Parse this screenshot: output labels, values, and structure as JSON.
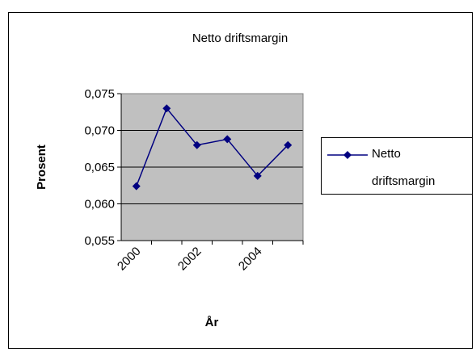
{
  "chart_data": {
    "type": "line",
    "title": "Netto driftsmargin",
    "x_label": "År",
    "y_label": "Prosent",
    "categories": [
      "2000",
      null,
      "2002",
      null,
      "2004",
      null
    ],
    "series": [
      {
        "name": "Netto driftsmargin",
        "color": "#000080",
        "values": [
          0.0624,
          0.073,
          0.068,
          0.0688,
          0.0638,
          0.068
        ]
      }
    ],
    "ylim": [
      0.055,
      0.075
    ],
    "yticks": [
      {
        "value": 0.055,
        "label": "0,055"
      },
      {
        "value": 0.06,
        "label": "0,060"
      },
      {
        "value": 0.065,
        "label": "0,065"
      },
      {
        "value": 0.07,
        "label": "0,070"
      },
      {
        "value": 0.075,
        "label": "0,075"
      }
    ],
    "grid": true,
    "legend": "right"
  }
}
